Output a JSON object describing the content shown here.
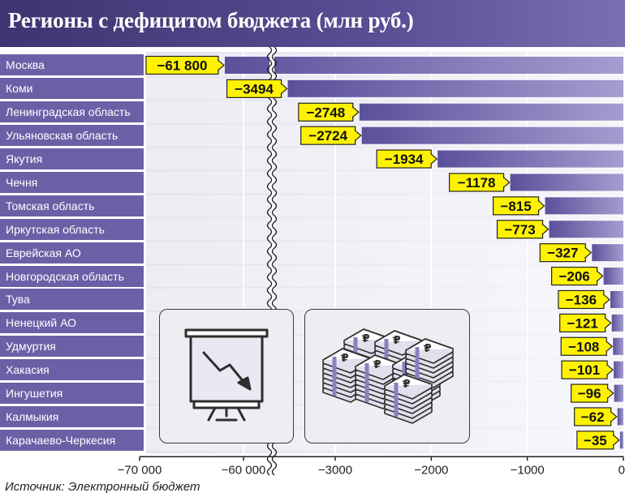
{
  "chart_data": {
    "type": "bar",
    "title": "Регионы с дефицитом бюджета (млн руб.)",
    "orientation": "horizontal",
    "axis_break": "between -60 000 and -3000",
    "categories": [
      "Москва",
      "Коми",
      "Ленинградская область",
      "Ульяновская область",
      "Якутия",
      "Чечня",
      "Томская область",
      "Иркутская область",
      "Еврейская АО",
      "Новгородская область",
      "Тува",
      "Ненецкий АО",
      "Удмуртия",
      "Хакасия",
      "Ингушетия",
      "Калмыкия",
      "Карачаево-Черкесия"
    ],
    "values": [
      -61800,
      -3494,
      -2748,
      -2724,
      -1934,
      -1178,
      -815,
      -773,
      -327,
      -206,
      -136,
      -121,
      -108,
      -101,
      -96,
      -62,
      -35
    ],
    "value_labels": [
      "−61 800",
      "−3494",
      "−2748",
      "−2724",
      "−1934",
      "−1178",
      "−815",
      "−773",
      "−327",
      "−206",
      "−136",
      "−121",
      "−108",
      "−101",
      "−96",
      "−62",
      "−35"
    ],
    "ticks": [
      {
        "value": -70000,
        "label": "−70 000"
      },
      {
        "value": -60000,
        "label": "−60 000"
      },
      {
        "value": -3000,
        "label": "−3000"
      },
      {
        "value": -2000,
        "label": "−2000"
      },
      {
        "value": -1000,
        "label": "−1000"
      },
      {
        "value": 0,
        "label": "0"
      }
    ],
    "grid": true,
    "colors": {
      "bar": "#6b60a6",
      "label_bg": "#6b60a6",
      "value_box": "#fff200",
      "header": "#4a3f83"
    }
  },
  "source": "Источник: Электронный бюджет",
  "icons": [
    "chart-down-icon",
    "money-stack-icon"
  ]
}
